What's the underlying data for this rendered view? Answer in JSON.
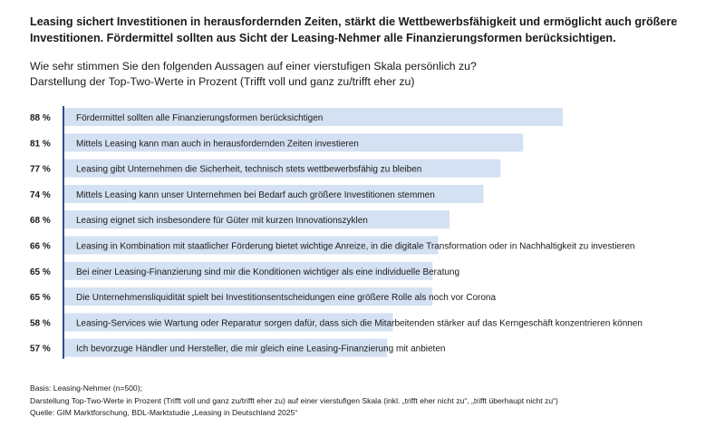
{
  "title": "Leasing sichert Investitionen in herausfordernden Zeiten, stärkt die Wettbewerbsfähigkeit und ermöglicht auch größere Investitionen. Fördermittel sollten aus Sicht der Leasing-Nehmer alle Finanzierungsformen berücksichtigen.",
  "subtitle": [
    "Wie sehr stimmen Sie den folgenden Aussagen auf einer vierstufigen Skala persönlich zu?",
    "Darstellung der Top-Two-Werte in Prozent (Trifft voll und ganz zu/trifft eher zu)"
  ],
  "chart_data": {
    "type": "bar",
    "orientation": "horizontal",
    "unit": "%",
    "categories": [
      "Fördermittel sollten alle Finanzierungsformen berücksichtigen",
      "Mittels Leasing kann man auch in herausfordernden Zeiten investieren",
      "Leasing gibt Unternehmen die Sicherheit, technisch stets wettbewerbsfähig zu bleiben",
      "Mittels Leasing kann unser Unternehmen bei Bedarf auch größere Investitionen stemmen",
      "Leasing eignet sich insbesondere für Güter mit kurzen Innovationszyklen",
      "Leasing in Kombination mit staatlicher Förderung bietet wichtige Anreize, in die digitale Transformation oder in Nachhaltigkeit zu investieren",
      "Bei einer Leasing-Finanzierung sind mir die Konditionen wichtiger als eine individuelle Beratung",
      "Die Unternehmensliquidität spielt bei Investitionsentscheidungen eine größere Rolle als noch vor Corona",
      "Leasing-Services wie Wartung oder Reparatur sorgen dafür, dass sich die Mitarbeitenden stärker auf das Kerngeschäft konzentrieren können",
      "Ich bevorzuge Händler und Hersteller, die mir gleich eine Leasing-Finanzierung mit anbieten"
    ],
    "values": [
      88,
      81,
      77,
      74,
      68,
      66,
      65,
      65,
      58,
      57
    ],
    "value_labels": [
      "88 %",
      "81 %",
      "77 %",
      "74 %",
      "68 %",
      "66 %",
      "65 %",
      "65 %",
      "58 %",
      "57 %"
    ],
    "xlim": [
      0,
      100
    ],
    "grid": false,
    "legend": "none",
    "colors": {
      "bar": "#d4e1f2",
      "axis": "#2b4f8e",
      "text": "#1a1a1a"
    }
  },
  "footer": [
    "Basis: Leasing-Nehmer (n=500);",
    "Darstellung Top-Two-Werte in Prozent (Trifft voll und ganz zu/trifft eher zu) auf einer vierstufigen Skala (inkl. „trifft eher nicht zu“, „trifft überhaupt nicht zu“)",
    "Quelle: GIM Marktforschung, BDL-Marktstudie „Leasing in Deutschland 2025“"
  ]
}
